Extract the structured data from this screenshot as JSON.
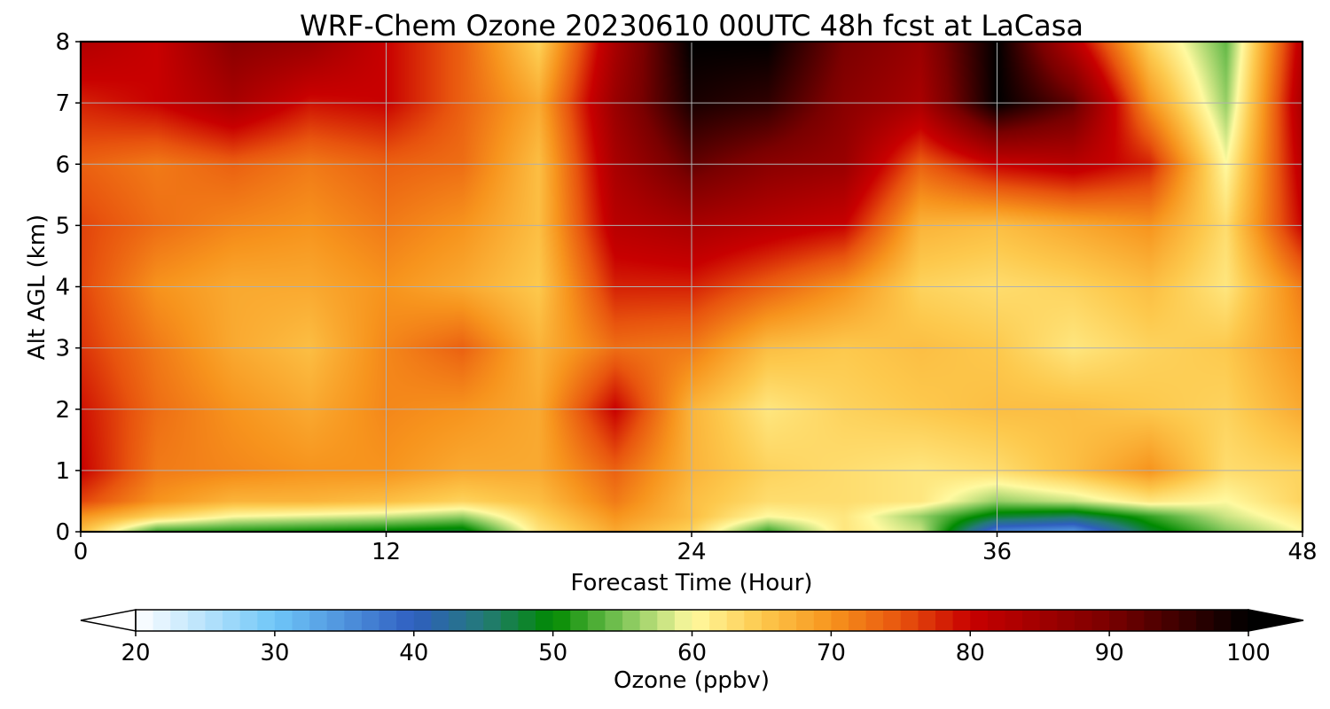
{
  "chart_data": {
    "type": "heatmap",
    "title": "WRF-Chem Ozone  20230610 00UTC 48h fcst at LaCasa",
    "xlabel": "Forecast Time (Hour)",
    "ylabel": "Alt AGL (km)",
    "xlim": [
      0,
      48
    ],
    "ylim": [
      0,
      8
    ],
    "xticks": [
      0,
      12,
      24,
      36,
      48
    ],
    "yticks": [
      0,
      1,
      2,
      3,
      4,
      5,
      6,
      7,
      8
    ],
    "grid": true,
    "colorbar": {
      "label": "Ozone  (ppbv)",
      "min": 20,
      "max": 100,
      "ticks": [
        20,
        30,
        40,
        50,
        60,
        70,
        80,
        90,
        100
      ],
      "extend": "both",
      "colors": [
        [
          20,
          "#ffffff"
        ],
        [
          30,
          "#6fc6f8"
        ],
        [
          40,
          "#2f5fc0"
        ],
        [
          45,
          "#247a78"
        ],
        [
          50,
          "#008a00"
        ],
        [
          55,
          "#7cc457"
        ],
        [
          60,
          "#fffaa0"
        ],
        [
          65,
          "#fdc94d"
        ],
        [
          70,
          "#f7941d"
        ],
        [
          75,
          "#e8540e"
        ],
        [
          80,
          "#c80000"
        ],
        [
          90,
          "#7a0000"
        ],
        [
          100,
          "#000000"
        ]
      ]
    },
    "x": [
      0,
      3,
      6,
      9,
      12,
      15,
      18,
      21,
      24,
      27,
      30,
      33,
      36,
      39,
      42,
      45,
      48
    ],
    "y": [
      0,
      0.25,
      0.5,
      1,
      2,
      3,
      4,
      5,
      6,
      7,
      8
    ],
    "z": [
      [
        66,
        52,
        51,
        50,
        49,
        48,
        62,
        68,
        64,
        52,
        62,
        58,
        36,
        34,
        48,
        55,
        60
      ],
      [
        70,
        64,
        60,
        59,
        58,
        56,
        64,
        70,
        66,
        60,
        62,
        56,
        48,
        46,
        52,
        58,
        62
      ],
      [
        76,
        70,
        67,
        67,
        66,
        64,
        66,
        72,
        66,
        63,
        63,
        62,
        56,
        58,
        62,
        60,
        64
      ],
      [
        80,
        72,
        71,
        70,
        70,
        68,
        68,
        74,
        67,
        64,
        63,
        62,
        63,
        66,
        70,
        63,
        64
      ],
      [
        79,
        73,
        70,
        68,
        71,
        70,
        68,
        80,
        67,
        62,
        64,
        65,
        66,
        66,
        65,
        64,
        68
      ],
      [
        77,
        72,
        68,
        66,
        71,
        74,
        67,
        73,
        72,
        66,
        65,
        66,
        65,
        62,
        64,
        65,
        70
      ],
      [
        76,
        70,
        68,
        68,
        70,
        68,
        65,
        78,
        78,
        74,
        70,
        64,
        63,
        64,
        66,
        62,
        72
      ],
      [
        76,
        73,
        71,
        70,
        72,
        70,
        66,
        82,
        84,
        82,
        80,
        67,
        66,
        68,
        70,
        63,
        80
      ],
      [
        74,
        72,
        74,
        72,
        74,
        73,
        66,
        84,
        92,
        88,
        86,
        74,
        80,
        82,
        78,
        60,
        82
      ],
      [
        78,
        80,
        84,
        79,
        80,
        74,
        68,
        86,
        98,
        96,
        88,
        84,
        100,
        92,
        70,
        56,
        84
      ],
      [
        83,
        80,
        88,
        86,
        80,
        74,
        64,
        84,
        100,
        100,
        90,
        86,
        100,
        82,
        64,
        54,
        82
      ]
    ]
  }
}
